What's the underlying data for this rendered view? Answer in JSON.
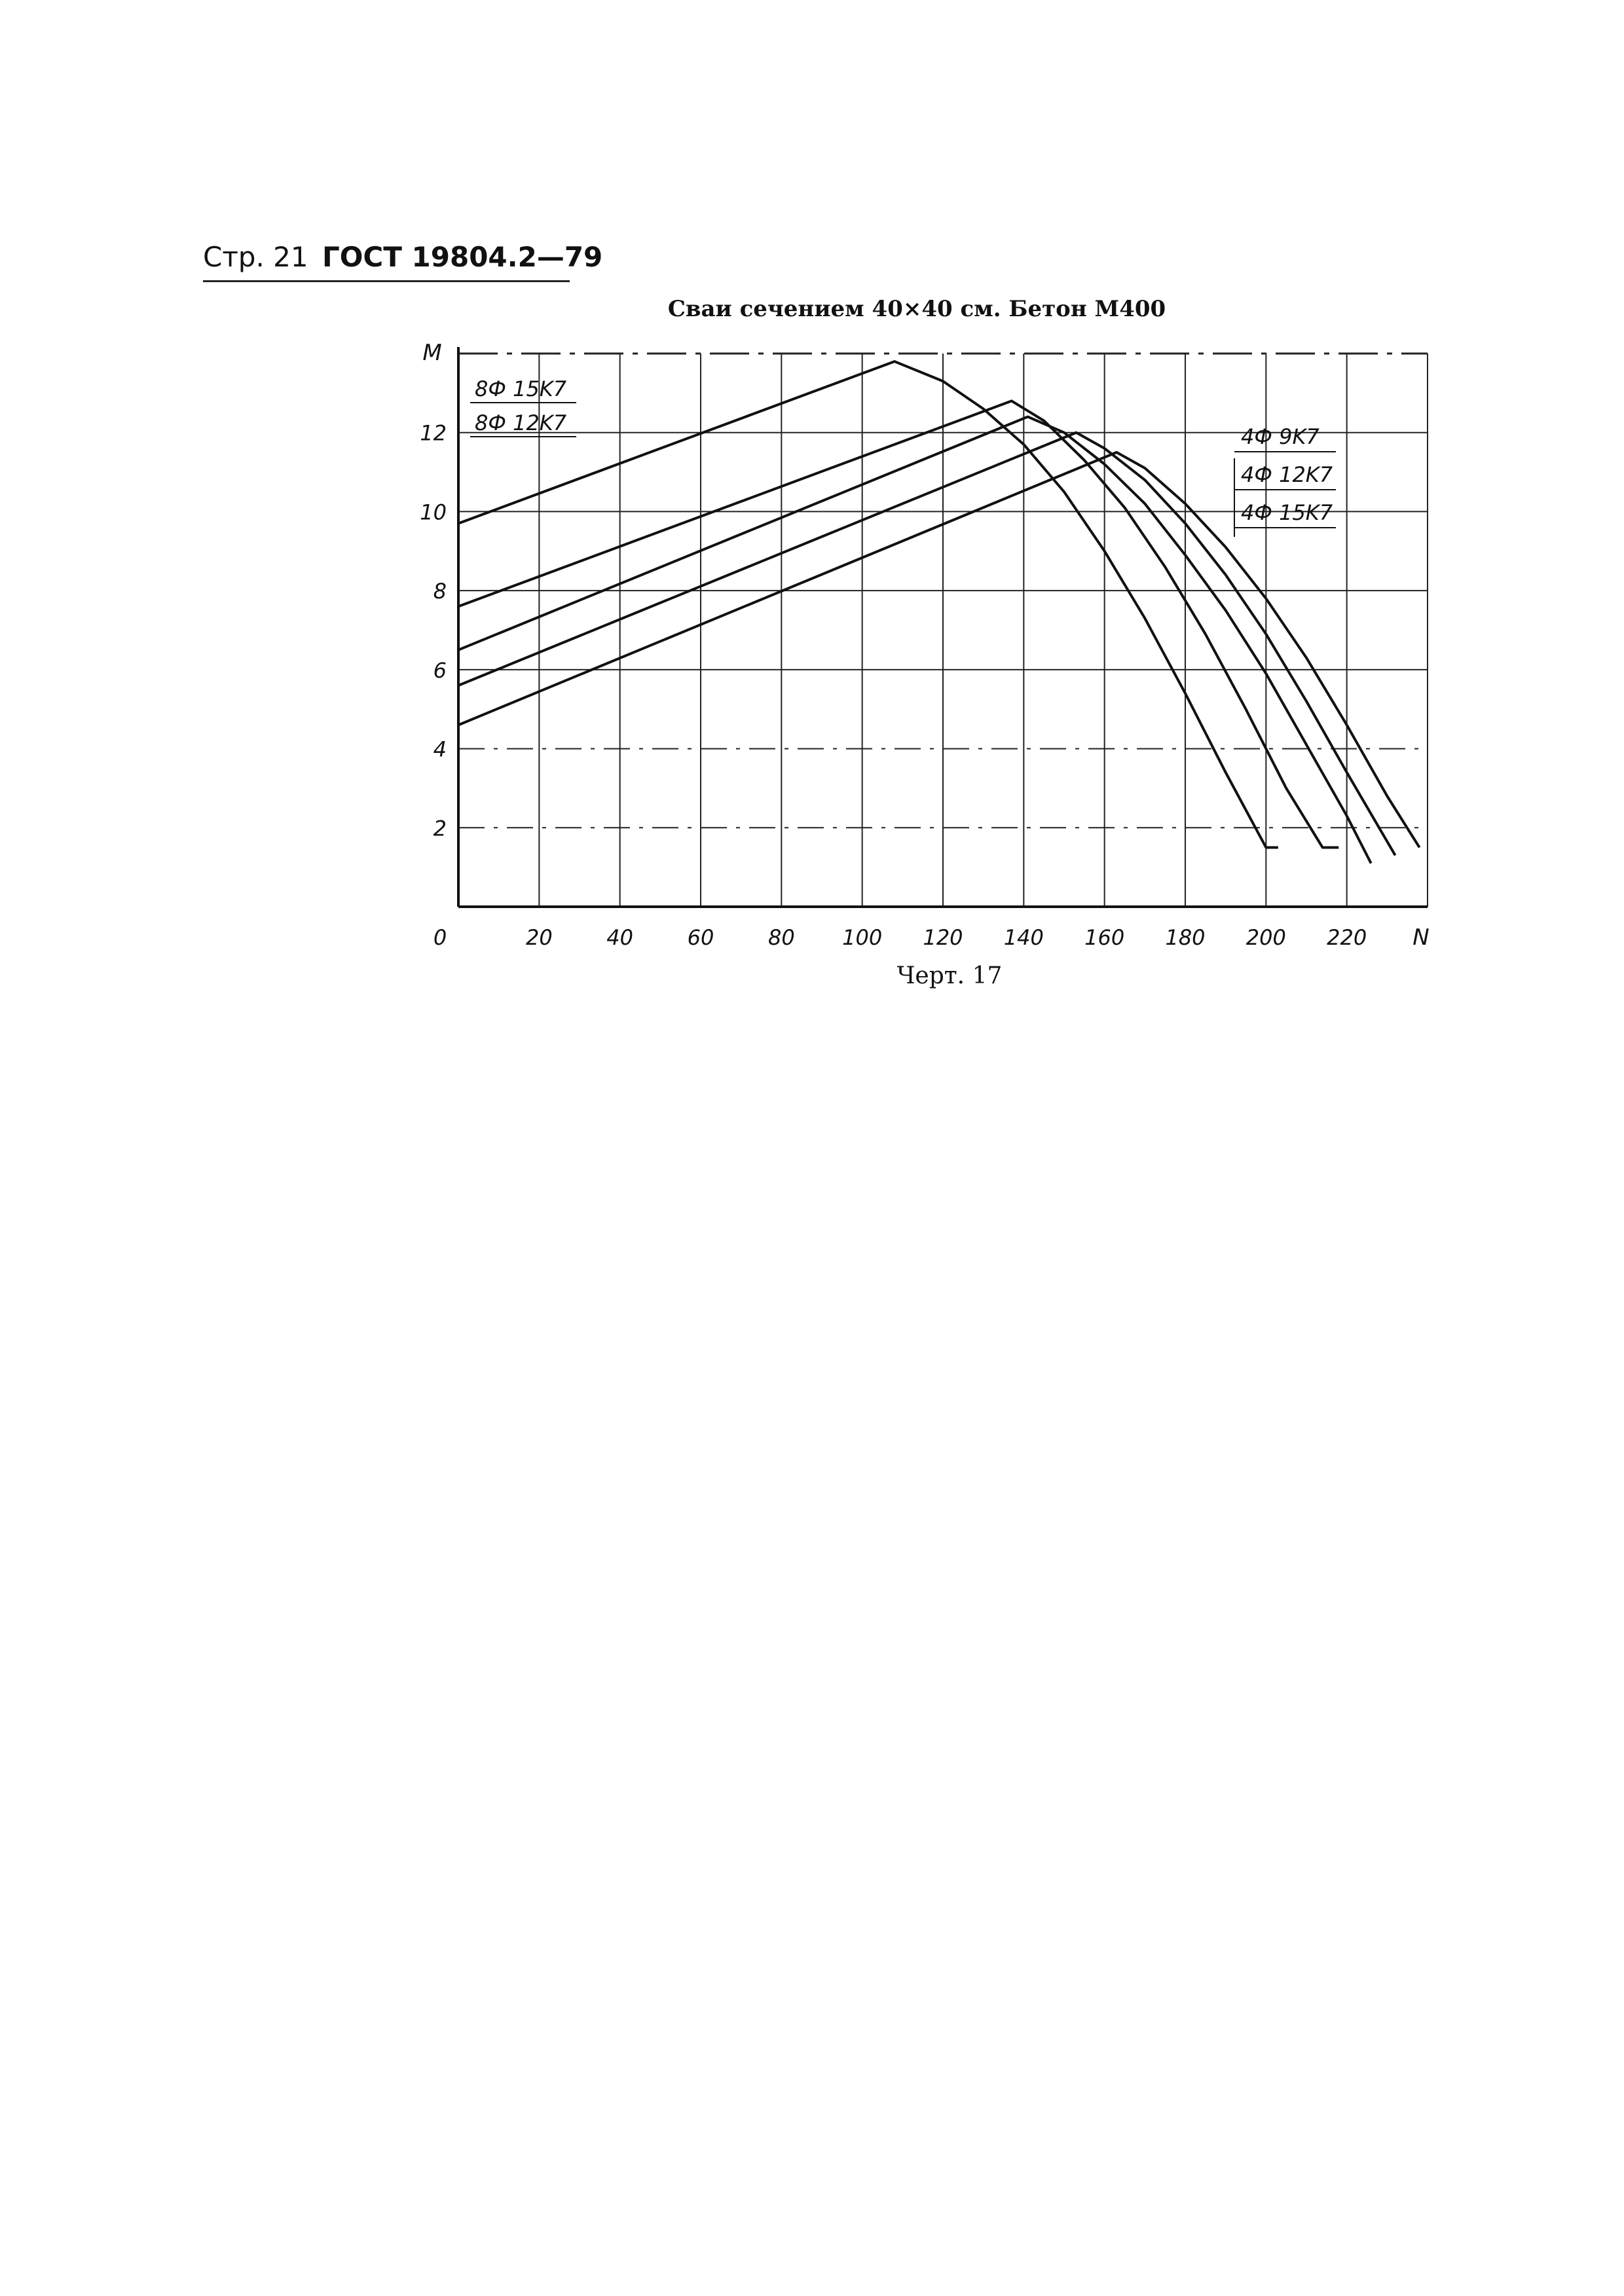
{
  "header": {
    "page": "Стр. 21",
    "standard": "ГОСТ 19804.2—79"
  },
  "caption": "Черт. 17",
  "chart_data": {
    "type": "line",
    "title": "Сваи сечением 40×40 см. Бетон М400",
    "xlabel": "N",
    "ylabel": "M",
    "xlim": [
      0,
      240
    ],
    "ylim": [
      0,
      14
    ],
    "x_ticks": [
      "0",
      "20",
      "40",
      "60",
      "80",
      "100",
      "120",
      "140",
      "160",
      "180",
      "200",
      "220"
    ],
    "y_ticks": [
      "2",
      "4",
      "6",
      "8",
      "10",
      "12"
    ],
    "grid": true,
    "legend_left": [
      "8Ф 15K7",
      "8Ф 12K7"
    ],
    "legend_right": [
      "4Ф 9K7",
      "4Ф 12K7",
      "4Ф 15K7"
    ],
    "series": [
      {
        "x": [
          0,
          108,
          120,
          130,
          140,
          150,
          160,
          170,
          180,
          190,
          200,
          203
        ],
        "y": [
          9.7,
          13.8,
          13.3,
          12.6,
          11.7,
          10.5,
          9.0,
          7.3,
          5.4,
          3.4,
          1.5,
          1.5
        ]
      },
      {
        "x": [
          0,
          137,
          145,
          155,
          165,
          175,
          185,
          195,
          205,
          214,
          218
        ],
        "y": [
          7.6,
          12.8,
          12.3,
          11.3,
          10.1,
          8.6,
          6.9,
          5.0,
          3.0,
          1.5,
          1.5
        ]
      },
      {
        "x": [
          0,
          141,
          150,
          160,
          170,
          180,
          190,
          200,
          210,
          220,
          226
        ],
        "y": [
          6.5,
          12.4,
          12.0,
          11.2,
          10.2,
          8.9,
          7.5,
          5.9,
          4.1,
          2.3,
          1.1
        ]
      },
      {
        "x": [
          0,
          153,
          160,
          170,
          180,
          190,
          200,
          210,
          220,
          232
        ],
        "y": [
          5.6,
          12.0,
          11.6,
          10.8,
          9.7,
          8.4,
          6.9,
          5.2,
          3.4,
          1.3
        ]
      },
      {
        "x": [
          0,
          163,
          170,
          180,
          190,
          200,
          210,
          220,
          230,
          238
        ],
        "y": [
          4.6,
          11.5,
          11.1,
          10.2,
          9.1,
          7.8,
          6.3,
          4.6,
          2.8,
          1.5
        ]
      }
    ]
  }
}
